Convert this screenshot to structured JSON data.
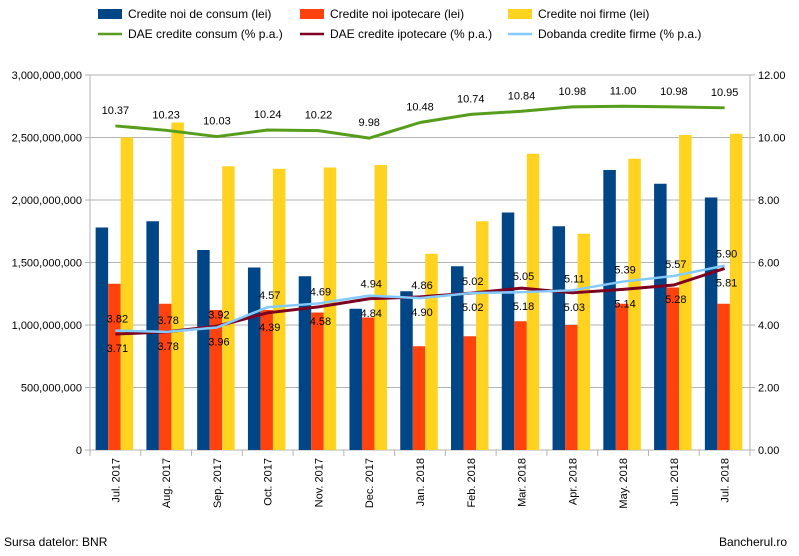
{
  "chart_data": {
    "type": "bar",
    "categories": [
      "Jul. 2017",
      "Aug. 2017",
      "Sep. 2017",
      "Oct. 2017",
      "Nov. 2017",
      "Dec. 2017",
      "Jan. 2018",
      "Feb. 2018",
      "Mar. 2018",
      "Apr. 2018",
      "May. 2018",
      "Jun. 2018",
      "Jul. 2018"
    ],
    "bar_series": [
      {
        "name": "Credite noi de consum (lei)",
        "color": "#004586",
        "values": [
          1780000000,
          1830000000,
          1600000000,
          1460000000,
          1390000000,
          1130000000,
          1270000000,
          1470000000,
          1900000000,
          1790000000,
          2240000000,
          2130000000,
          2020000000
        ]
      },
      {
        "name": "Credite noi ipotecare (lei)",
        "color": "#ff420e",
        "values": [
          1330000000,
          1170000000,
          1120000000,
          1120000000,
          1100000000,
          1060000000,
          830000000,
          910000000,
          1030000000,
          1000000000,
          1170000000,
          1300000000,
          1170000000
        ]
      },
      {
        "name": "Credite noi firme (lei)",
        "color": "#ffd320",
        "values": [
          2500000000,
          2620000000,
          2270000000,
          2250000000,
          2260000000,
          2280000000,
          1570000000,
          1830000000,
          2370000000,
          1730000000,
          2330000000,
          2520000000,
          2530000000
        ]
      }
    ],
    "line_series": [
      {
        "name": "DAE credite consum (% p.a.)",
        "color": "#579d1c",
        "values": [
          10.37,
          10.23,
          10.03,
          10.24,
          10.22,
          9.98,
          10.48,
          10.74,
          10.84,
          10.98,
          11.0,
          10.98,
          10.95
        ],
        "labels": [
          "10.37",
          "10.23",
          "10.03",
          "10.24",
          "10.22",
          "9.98",
          "10.48",
          "10.74",
          "10.84",
          "10.98",
          "11.00",
          "10.98",
          "10.95"
        ]
      },
      {
        "name": "DAE credite ipotecare (% p.a.)",
        "color": "#7e0021",
        "values": [
          3.71,
          3.78,
          3.96,
          4.39,
          4.58,
          4.84,
          4.9,
          5.02,
          5.18,
          5.03,
          5.14,
          5.28,
          5.81
        ],
        "labels": [
          "3.71",
          "3.78",
          "3.96",
          "4.39",
          "4.58",
          "4.84",
          "4.90",
          "5.02",
          "5.18",
          "5.03",
          "5.14",
          "5.28",
          "5.81"
        ]
      },
      {
        "name": "Dobanda credite firme (% p.a.)",
        "color": "#83caff",
        "values": [
          3.82,
          3.78,
          3.92,
          4.57,
          4.69,
          4.94,
          4.86,
          5.02,
          5.05,
          5.11,
          5.39,
          5.57,
          5.9
        ],
        "labels": [
          "3.82",
          "3.78",
          "3.92",
          "4.57",
          "4.69",
          "4.94",
          "4.86",
          "5.02",
          "5.05",
          "5.11",
          "5.39",
          "5.57",
          "5.90"
        ]
      }
    ],
    "y_left": {
      "ylim": [
        0,
        3000000000
      ],
      "ticks": [
        0,
        500000000,
        1000000000,
        1500000000,
        2000000000,
        2500000000,
        3000000000
      ],
      "tick_labels": [
        "0",
        "500,000,000",
        "1,000,000,000",
        "1,500,000,000",
        "2,000,000,000",
        "2,500,000,000",
        "3,000,000,000"
      ]
    },
    "y_right": {
      "ylim": [
        0,
        12
      ],
      "ticks": [
        0,
        2,
        4,
        6,
        8,
        10,
        12
      ],
      "tick_labels": [
        "0.00",
        "2.00",
        "4.00",
        "6.00",
        "8.00",
        "10.00",
        "12.00"
      ]
    },
    "grid": true,
    "legend": "top"
  },
  "footer": {
    "source": "Sursa datelor: BNR",
    "brand": "Bancherul.ro"
  }
}
